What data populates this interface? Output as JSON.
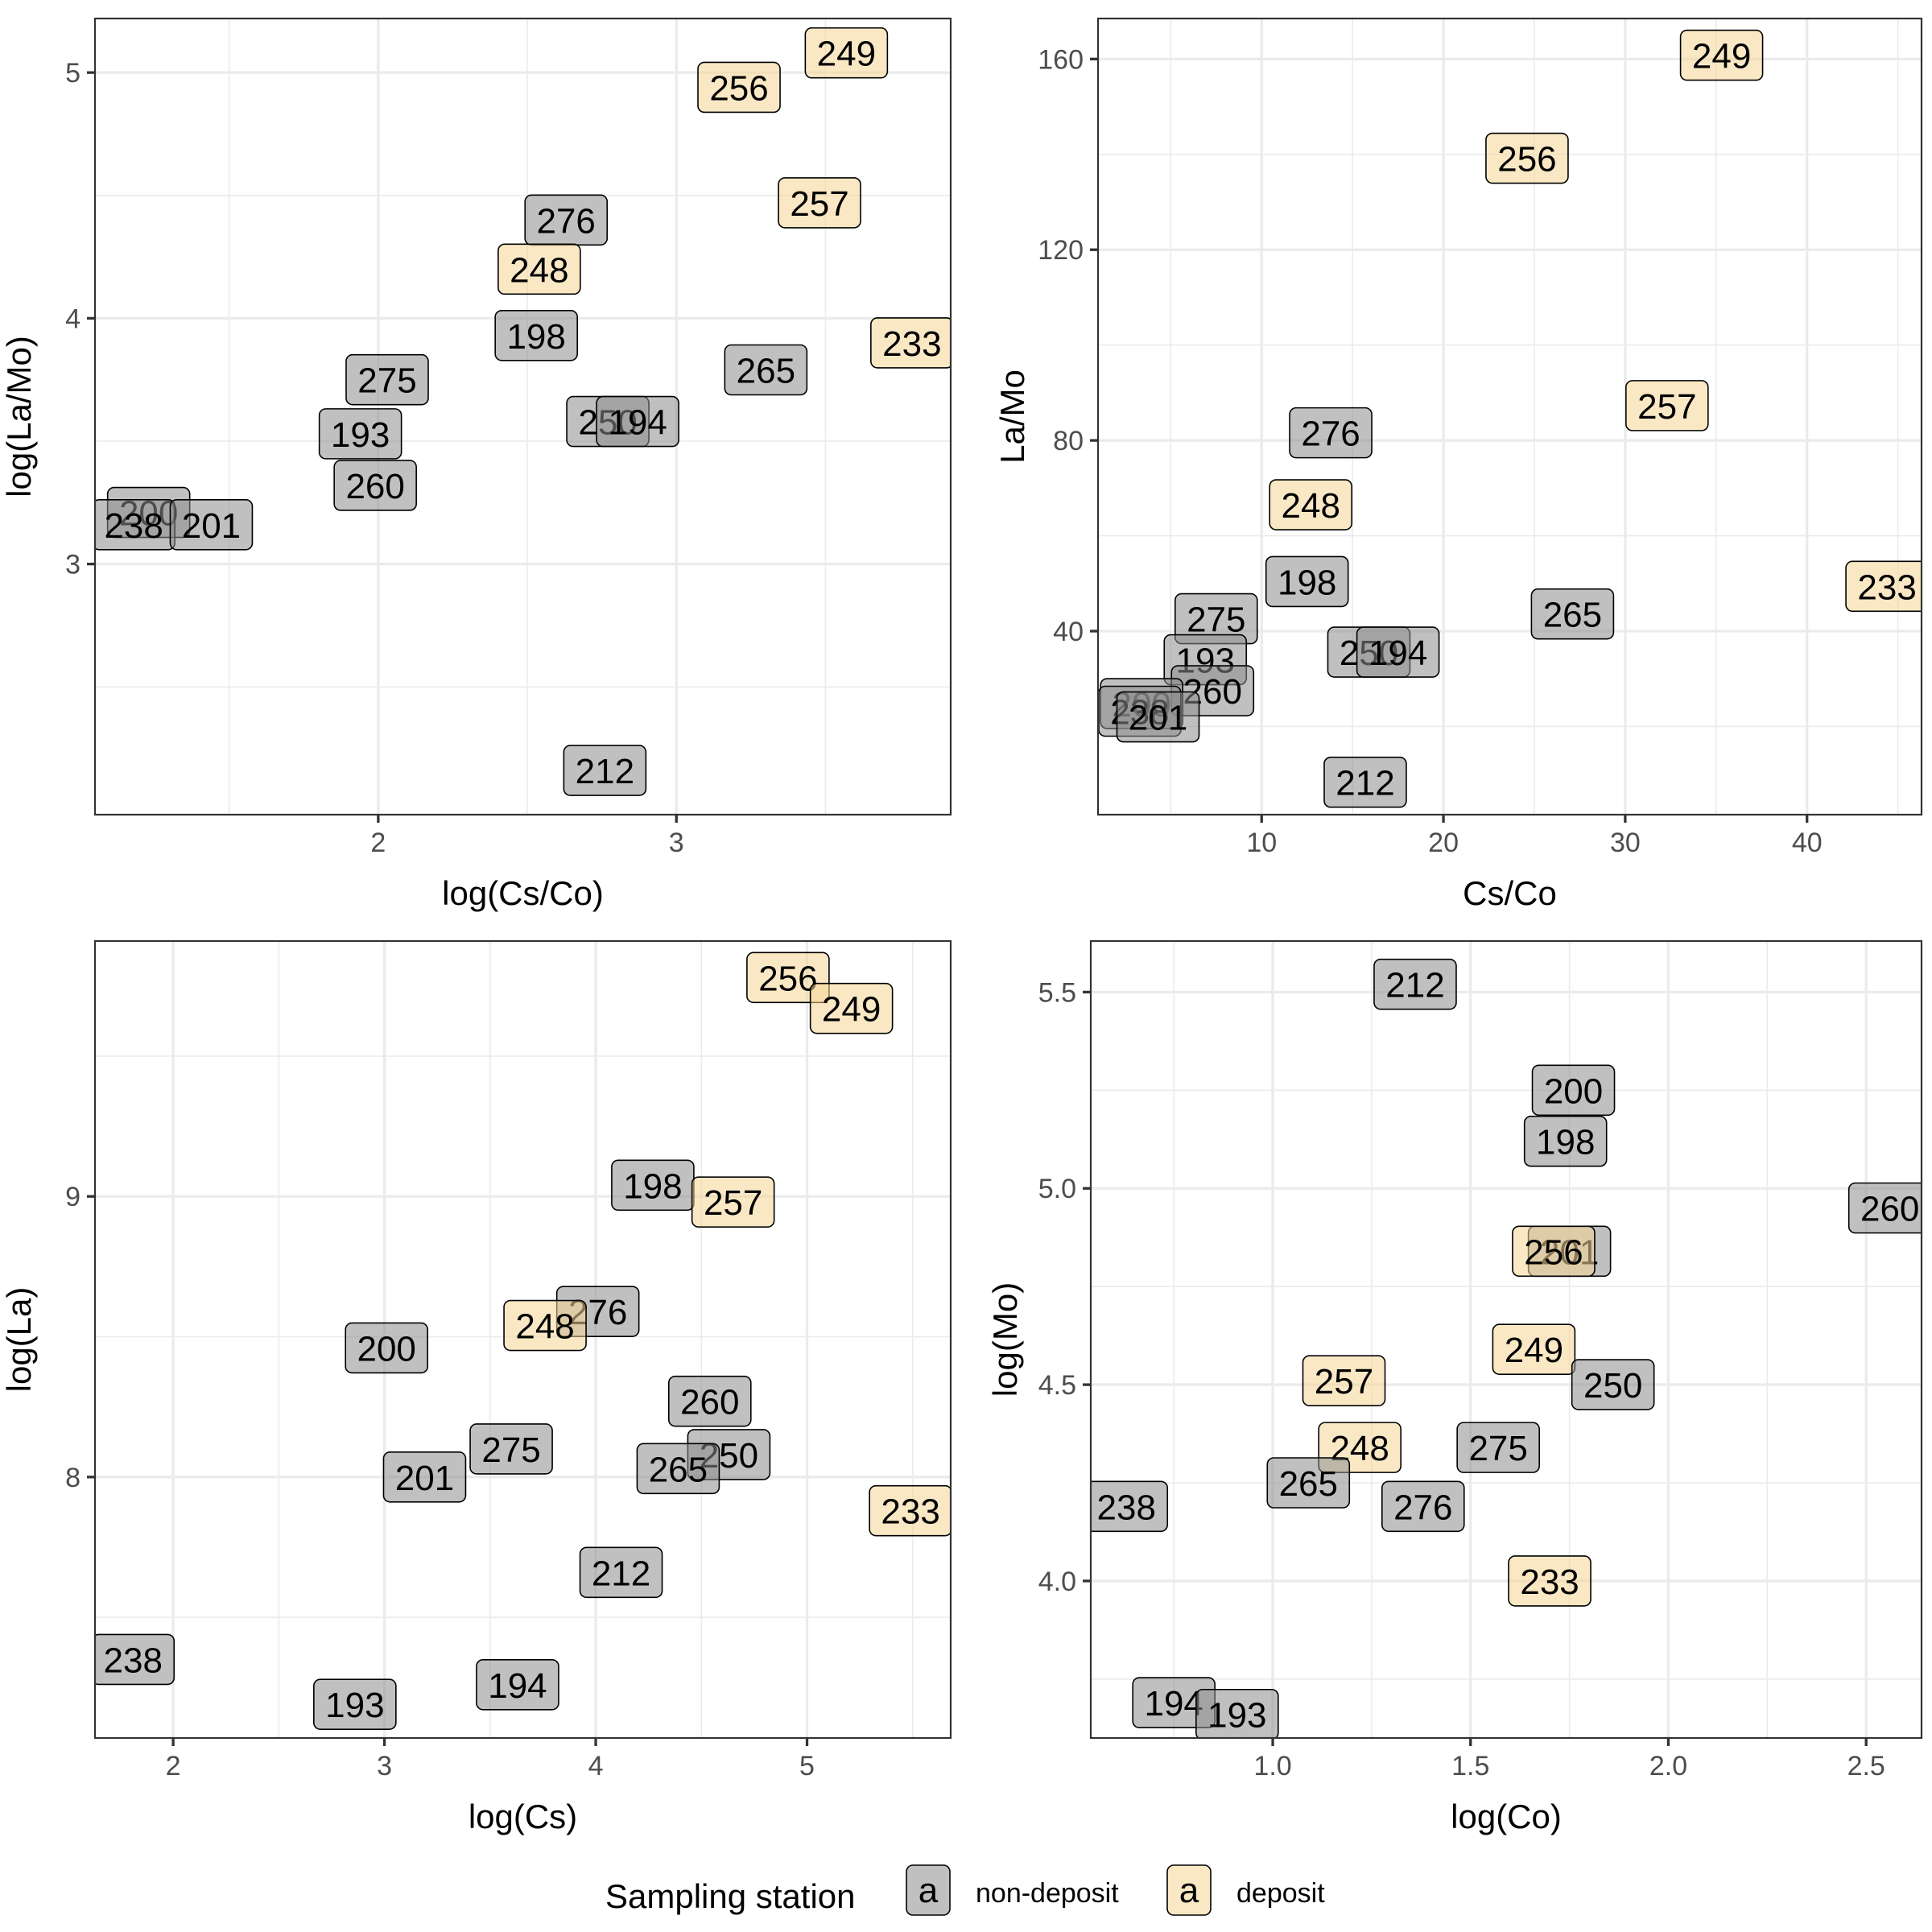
{
  "figure": {
    "type": "faceted-label-scatter"
  },
  "legend": {
    "title": "Sampling station",
    "key_glyph": "a",
    "placement": "bottom",
    "entries": [
      {
        "label": "non-deposit",
        "group": "non-deposit",
        "color": "#8c8c8c"
      },
      {
        "label": "deposit",
        "group": "deposit",
        "color": "#f5d595"
      }
    ]
  },
  "colors": {
    "non-deposit": "#8c8c8c",
    "deposit": "#f5d595",
    "panel_border": "#333333",
    "grid": "#ebebeb",
    "tick_label": "#4d4d4d"
  },
  "chart_data": [
    {
      "type": "scatter",
      "title": "",
      "xlabel": "log(Cs/Co)",
      "ylabel": "log(La/Mo)",
      "xlim": [
        1.05,
        3.92
      ],
      "ylim": [
        1.98,
        5.22
      ],
      "xticks": [
        2,
        3
      ],
      "xtick_labels": [
        "2",
        "3"
      ],
      "yticks": [
        3,
        4,
        5
      ],
      "ytick_labels": [
        "3",
        "4",
        "5"
      ],
      "grid": true,
      "points": [
        {
          "label": "249",
          "group": "deposit",
          "x": 3.57,
          "y": 5.08
        },
        {
          "label": "256",
          "group": "deposit",
          "x": 3.21,
          "y": 4.94
        },
        {
          "label": "257",
          "group": "deposit",
          "x": 3.48,
          "y": 4.47
        },
        {
          "label": "276",
          "group": "non-deposit",
          "x": 2.63,
          "y": 4.4
        },
        {
          "label": "248",
          "group": "deposit",
          "x": 2.54,
          "y": 4.2
        },
        {
          "label": "198",
          "group": "non-deposit",
          "x": 2.53,
          "y": 3.93
        },
        {
          "label": "275",
          "group": "non-deposit",
          "x": 2.03,
          "y": 3.75
        },
        {
          "label": "193",
          "group": "non-deposit",
          "x": 1.94,
          "y": 3.53
        },
        {
          "label": "260",
          "group": "non-deposit",
          "x": 1.99,
          "y": 3.32
        },
        {
          "label": "265",
          "group": "non-deposit",
          "x": 3.3,
          "y": 3.79
        },
        {
          "label": "233",
          "group": "deposit",
          "x": 3.79,
          "y": 3.9
        },
        {
          "label": "250",
          "group": "non-deposit",
          "x": 2.77,
          "y": 3.58
        },
        {
          "label": "194",
          "group": "non-deposit",
          "x": 2.87,
          "y": 3.58
        },
        {
          "label": "212",
          "group": "non-deposit",
          "x": 2.76,
          "y": 2.16
        },
        {
          "label": "200",
          "group": "non-deposit",
          "x": 1.23,
          "y": 3.21
        },
        {
          "label": "238",
          "group": "non-deposit",
          "x": 1.18,
          "y": 3.16
        },
        {
          "label": "201",
          "group": "non-deposit",
          "x": 1.44,
          "y": 3.16
        }
      ]
    },
    {
      "type": "scatter",
      "title": "",
      "xlabel": "Cs/Co",
      "ylabel": "La/Mo",
      "xlim": [
        1.0,
        46.3
      ],
      "ylim": [
        1.5,
        168.5
      ],
      "xticks": [
        10,
        20,
        30,
        40
      ],
      "xtick_labels": [
        "10",
        "20",
        "30",
        "40"
      ],
      "yticks": [
        40,
        80,
        120,
        160
      ],
      "ytick_labels": [
        "40",
        "80",
        "120",
        "160"
      ],
      "grid": true,
      "points": [
        {
          "label": "249",
          "group": "deposit",
          "x": 35.3,
          "y": 160.8
        },
        {
          "label": "256",
          "group": "deposit",
          "x": 24.6,
          "y": 139.2
        },
        {
          "label": "257",
          "group": "deposit",
          "x": 32.3,
          "y": 87.3
        },
        {
          "label": "276",
          "group": "non-deposit",
          "x": 13.8,
          "y": 81.6
        },
        {
          "label": "248",
          "group": "deposit",
          "x": 12.7,
          "y": 66.5
        },
        {
          "label": "198",
          "group": "non-deposit",
          "x": 12.5,
          "y": 50.4
        },
        {
          "label": "275",
          "group": "non-deposit",
          "x": 7.5,
          "y": 42.6
        },
        {
          "label": "193",
          "group": "non-deposit",
          "x": 6.9,
          "y": 34.0
        },
        {
          "label": "260",
          "group": "non-deposit",
          "x": 7.3,
          "y": 27.5
        },
        {
          "label": "265",
          "group": "non-deposit",
          "x": 27.1,
          "y": 43.6
        },
        {
          "label": "233",
          "group": "deposit",
          "x": 44.4,
          "y": 49.4
        },
        {
          "label": "250",
          "group": "non-deposit",
          "x": 15.9,
          "y": 35.6
        },
        {
          "label": "194",
          "group": "non-deposit",
          "x": 17.5,
          "y": 35.6
        },
        {
          "label": "212",
          "group": "non-deposit",
          "x": 15.7,
          "y": 8.3
        },
        {
          "label": "200",
          "group": "non-deposit",
          "x": 3.4,
          "y": 24.8
        },
        {
          "label": "238",
          "group": "non-deposit",
          "x": 3.3,
          "y": 23.2
        },
        {
          "label": "201",
          "group": "non-deposit",
          "x": 4.3,
          "y": 22.0
        }
      ]
    },
    {
      "type": "scatter",
      "title": "",
      "xlabel": "log(Cs)",
      "ylabel": "log(La)",
      "xlim": [
        1.63,
        5.68
      ],
      "ylim": [
        7.07,
        9.91
      ],
      "xticks": [
        2,
        3,
        4,
        5
      ],
      "xtick_labels": [
        "2",
        "3",
        "4",
        "5"
      ],
      "yticks": [
        8,
        9
      ],
      "ytick_labels": [
        "8",
        "9"
      ],
      "grid": true,
      "points": [
        {
          "label": "256",
          "group": "deposit",
          "x": 4.91,
          "y": 9.78
        },
        {
          "label": "249",
          "group": "deposit",
          "x": 5.21,
          "y": 9.67
        },
        {
          "label": "198",
          "group": "non-deposit",
          "x": 4.27,
          "y": 9.04
        },
        {
          "label": "257",
          "group": "deposit",
          "x": 4.65,
          "y": 8.98
        },
        {
          "label": "276",
          "group": "non-deposit",
          "x": 4.01,
          "y": 8.59
        },
        {
          "label": "248",
          "group": "deposit",
          "x": 3.76,
          "y": 8.54
        },
        {
          "label": "200",
          "group": "non-deposit",
          "x": 3.01,
          "y": 8.46
        },
        {
          "label": "260",
          "group": "non-deposit",
          "x": 4.54,
          "y": 8.27
        },
        {
          "label": "275",
          "group": "non-deposit",
          "x": 3.6,
          "y": 8.1
        },
        {
          "label": "250",
          "group": "non-deposit",
          "x": 4.63,
          "y": 8.08
        },
        {
          "label": "265",
          "group": "non-deposit",
          "x": 4.39,
          "y": 8.03
        },
        {
          "label": "201",
          "group": "non-deposit",
          "x": 3.19,
          "y": 8.0
        },
        {
          "label": "233",
          "group": "deposit",
          "x": 5.49,
          "y": 7.88
        },
        {
          "label": "212",
          "group": "non-deposit",
          "x": 4.12,
          "y": 7.66
        },
        {
          "label": "238",
          "group": "non-deposit",
          "x": 1.81,
          "y": 7.35
        },
        {
          "label": "194",
          "group": "non-deposit",
          "x": 3.63,
          "y": 7.26
        },
        {
          "label": "193",
          "group": "non-deposit",
          "x": 2.86,
          "y": 7.19
        }
      ]
    },
    {
      "type": "scatter",
      "title": "",
      "xlabel": "log(Co)",
      "ylabel": "log(Mo)",
      "xlim": [
        0.54,
        2.64
      ],
      "ylim": [
        3.6,
        5.63
      ],
      "xticks": [
        1.0,
        1.5,
        2.0,
        2.5
      ],
      "xtick_labels": [
        "1.0",
        "1.5",
        "2.0",
        "2.5"
      ],
      "yticks": [
        4.0,
        4.5,
        5.0,
        5.5
      ],
      "ytick_labels": [
        "4.0",
        "4.5",
        "5.0",
        "5.5"
      ],
      "grid": true,
      "points": [
        {
          "label": "212",
          "group": "non-deposit",
          "x": 1.36,
          "y": 5.52
        },
        {
          "label": "200",
          "group": "non-deposit",
          "x": 1.76,
          "y": 5.25
        },
        {
          "label": "198",
          "group": "non-deposit",
          "x": 1.74,
          "y": 5.12
        },
        {
          "label": "260",
          "group": "non-deposit",
          "x": 2.56,
          "y": 4.95
        },
        {
          "label": "201",
          "group": "non-deposit",
          "x": 1.75,
          "y": 4.84
        },
        {
          "label": "256",
          "group": "deposit",
          "x": 1.71,
          "y": 4.84
        },
        {
          "label": "249",
          "group": "deposit",
          "x": 1.66,
          "y": 4.59
        },
        {
          "label": "250",
          "group": "non-deposit",
          "x": 1.86,
          "y": 4.5
        },
        {
          "label": "257",
          "group": "deposit",
          "x": 1.18,
          "y": 4.51
        },
        {
          "label": "248",
          "group": "deposit",
          "x": 1.22,
          "y": 4.34
        },
        {
          "label": "275",
          "group": "non-deposit",
          "x": 1.57,
          "y": 4.34
        },
        {
          "label": "265",
          "group": "non-deposit",
          "x": 1.09,
          "y": 4.25
        },
        {
          "label": "276",
          "group": "non-deposit",
          "x": 1.38,
          "y": 4.19
        },
        {
          "label": "238",
          "group": "non-deposit",
          "x": 0.63,
          "y": 4.19
        },
        {
          "label": "233",
          "group": "deposit",
          "x": 1.7,
          "y": 4.0
        },
        {
          "label": "194",
          "group": "non-deposit",
          "x": 0.75,
          "y": 3.69
        },
        {
          "label": "193",
          "group": "non-deposit",
          "x": 0.91,
          "y": 3.66
        }
      ]
    }
  ]
}
